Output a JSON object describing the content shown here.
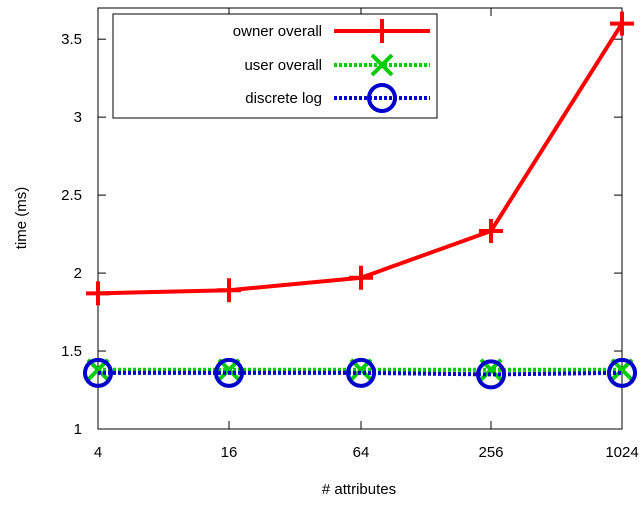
{
  "chart_data": {
    "type": "line",
    "title": "",
    "xlabel": "# attributes",
    "ylabel": "time (ms)",
    "x_scale": "log2",
    "categories": [
      "4",
      "16",
      "64",
      "256",
      "1024"
    ],
    "x": [
      4,
      16,
      64,
      256,
      1024
    ],
    "ylim": [
      1,
      3.7
    ],
    "yticks": [
      1,
      1.5,
      2,
      2.5,
      3,
      3.5
    ],
    "ytick_labels": [
      "1",
      "1.5",
      "2",
      "2.5",
      "3",
      "3.5"
    ],
    "grid": false,
    "legend_position": "top-left",
    "series": [
      {
        "name": "owner overall",
        "values": [
          1.87,
          1.89,
          1.97,
          2.27,
          3.6
        ],
        "color": "#ff0000",
        "marker": "plus",
        "line": "solid"
      },
      {
        "name": "user overall",
        "values": [
          1.38,
          1.38,
          1.38,
          1.38,
          1.38
        ],
        "color": "#00cc00",
        "marker": "cross",
        "line": "dotted"
      },
      {
        "name": "discrete log",
        "values": [
          1.36,
          1.36,
          1.36,
          1.35,
          1.36
        ],
        "color": "#0000cc",
        "marker": "circle",
        "line": "dotted"
      }
    ]
  }
}
